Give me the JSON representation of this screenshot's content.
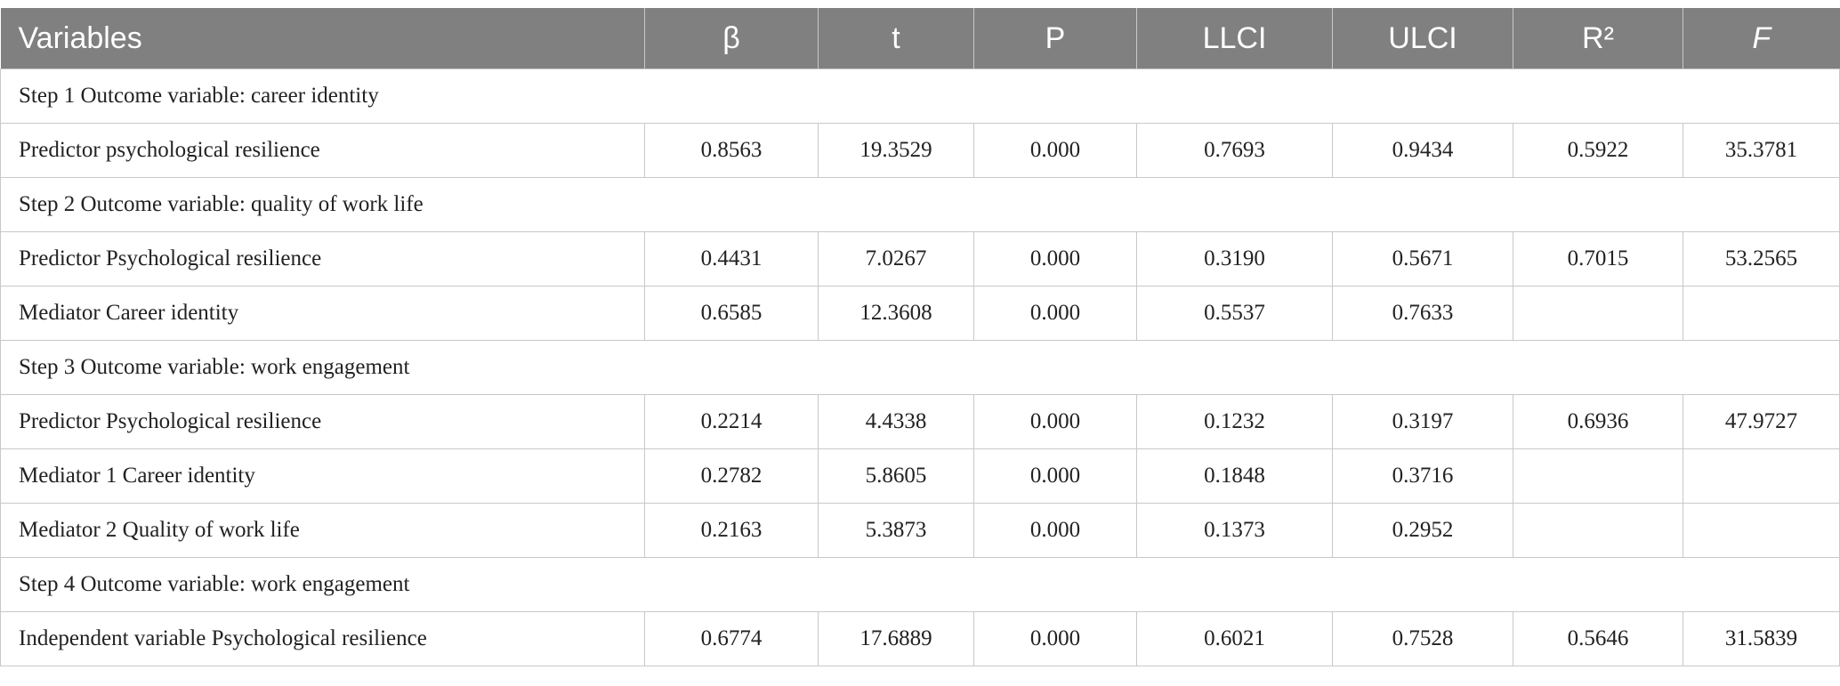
{
  "table": {
    "header": [
      "Variables",
      "β",
      "t",
      "P",
      "LLCI",
      "ULCI",
      "R²",
      "F"
    ],
    "rows": [
      [
        "Step 1 Outcome variable: career identity"
      ],
      [
        "Predictor psychological resilience",
        "0.8563",
        "19.3529",
        "0.000",
        "0.7693",
        "0.9434",
        "0.5922",
        "35.3781"
      ],
      [
        "Step 2 Outcome variable: quality of work life"
      ],
      [
        "Predictor Psychological resilience",
        "0.4431",
        "7.0267",
        "0.000",
        "0.3190",
        "0.5671",
        "0.7015",
        "53.2565"
      ],
      [
        "Mediator Career identity",
        "0.6585",
        "12.3608",
        "0.000",
        "0.5537",
        "0.7633",
        null,
        null
      ],
      [
        "Step 3 Outcome variable: work engagement"
      ],
      [
        "Predictor Psychological resilience",
        "0.2214",
        "4.4338",
        "0.000",
        "0.1232",
        "0.3197",
        "0.6936",
        "47.9727"
      ],
      [
        "Mediator 1 Career identity",
        "0.2782",
        "5.8605",
        "0.000",
        "0.1848",
        "0.3716",
        null,
        null
      ],
      [
        "Mediator 2 Quality of work life",
        "0.2163",
        "5.3873",
        "0.000",
        "0.1373",
        "0.2952",
        null,
        null
      ],
      [
        "Step 4 Outcome variable: work engagement"
      ],
      [
        "Independent variable Psychological resilience",
        "0.6774",
        "17.6889",
        "0.000",
        "0.6021",
        "0.7528",
        "0.5646",
        "31.5839"
      ]
    ]
  }
}
